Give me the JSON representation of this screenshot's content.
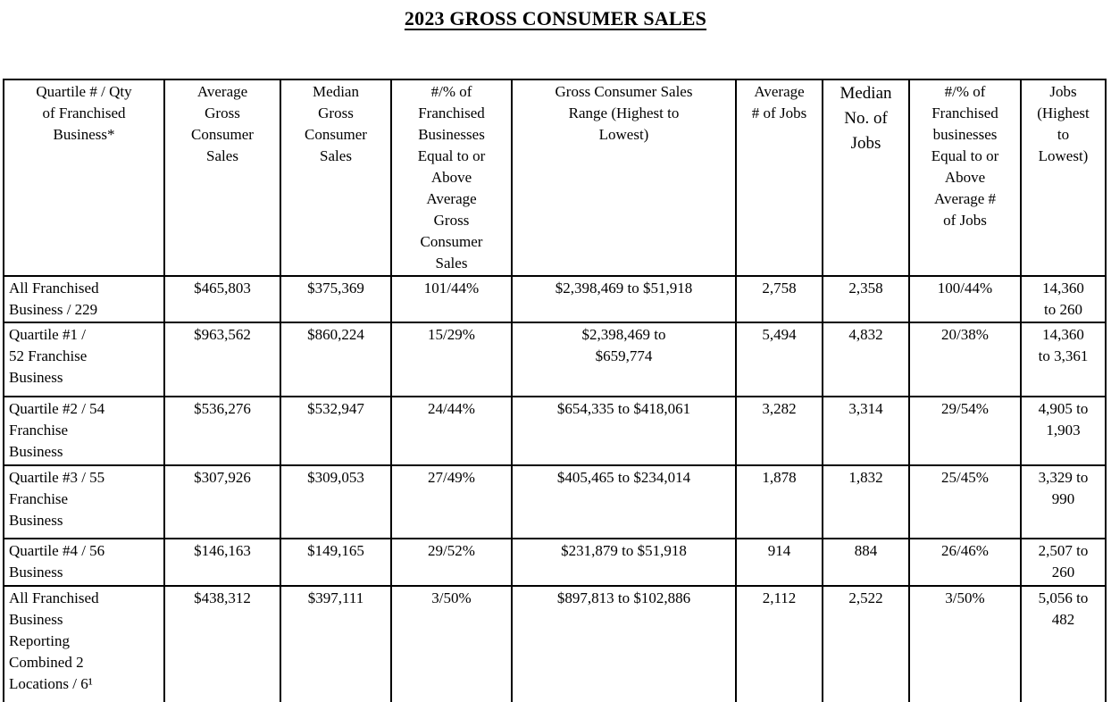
{
  "title": "2023 GROSS CONSUMER SALES",
  "colors": {
    "text": "#000000",
    "background": "#ffffff",
    "border": "#000000"
  },
  "table": {
    "columns": [
      "Quartile # / Qty\nof Franchised\nBusiness*",
      "Average\nGross\nConsumer\nSales",
      "Median\nGross\nConsumer\nSales",
      "#/% of\nFranchised\nBusinesses\nEqual to or\nAbove\nAverage\nGross\nConsumer\nSales",
      "Gross Consumer Sales\nRange (Highest to\nLowest)",
      "Average\n# of Jobs",
      "Median\nNo. of\nJobs",
      "#/% of\nFranchised\nbusinesses\nEqual to or\nAbove\nAverage #\nof Jobs",
      "Jobs\n(Highest\nto\nLowest)"
    ],
    "rows": [
      [
        "All Franchised\nBusiness / 229",
        "$465,803",
        "$375,369",
        "101/44%",
        "$2,398,469 to $51,918",
        "2,758",
        "2,358",
        "100/44%",
        "14,360\nto 260"
      ],
      [
        "Quartile #1 /\n52 Franchise\nBusiness",
        "$963,562",
        "$860,224",
        "15/29%",
        "$2,398,469 to\n$659,774",
        "5,494",
        "4,832",
        "20/38%",
        "14,360\nto 3,361"
      ],
      [
        "Quartile #2 / 54\nFranchise\nBusiness",
        "$536,276",
        "$532,947",
        "24/44%",
        "$654,335 to $418,061",
        "3,282",
        "3,314",
        "29/54%",
        "4,905 to\n1,903"
      ],
      [
        "Quartile #3 / 55\nFranchise\nBusiness",
        "$307,926",
        "$309,053",
        "27/49%",
        "$405,465 to $234,014",
        "1,878",
        "1,832",
        "25/45%",
        "3,329 to\n990"
      ],
      [
        "Quartile #4 / 56\nBusiness",
        "$146,163",
        "$149,165",
        "29/52%",
        "$231,879 to $51,918",
        "914",
        "884",
        "26/46%",
        "2,507 to\n260"
      ],
      [
        "All Franchised\nBusiness\nReporting\nCombined 2\nLocations / 6¹",
        "$438,312",
        "$397,111",
        "3/50%",
        "$897,813 to $102,886",
        "2,112",
        "2,522",
        "3/50%",
        "5,056 to\n482"
      ]
    ]
  }
}
